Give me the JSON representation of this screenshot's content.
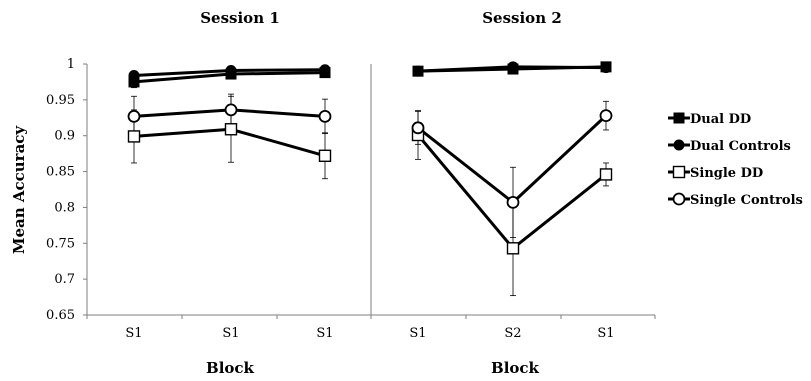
{
  "chart_data": {
    "type": "line",
    "ylabel": "Mean Accuracy",
    "ylim": [
      0.65,
      1.0
    ],
    "yticks": [
      "0.65",
      "0.7",
      "0.75",
      "0.8",
      "0.85",
      "0.9",
      "0.95",
      "1"
    ],
    "grid": false,
    "legend_placement": "right",
    "legend": [
      "Dual DD",
      "Dual Controls",
      "Single DD",
      "Single Controls"
    ],
    "panels": [
      {
        "title": "Session 1",
        "xlabel": "Block",
        "categories": [
          "S1",
          "S1",
          "S1"
        ],
        "series": [
          {
            "name": "Dual DD",
            "values": [
              0.975,
              0.986,
              0.988
            ],
            "errors": [
              0.008,
              0.006,
              0.004
            ]
          },
          {
            "name": "Dual Controls",
            "values": [
              0.984,
              0.991,
              0.992
            ],
            "errors": [
              0.004,
              0.003,
              0.003
            ]
          },
          {
            "name": "Single DD",
            "values": [
              0.899,
              0.909,
              0.872
            ],
            "errors": [
              0.037,
              0.046,
              0.032
            ]
          },
          {
            "name": "Single Controls",
            "values": [
              0.927,
              0.936,
              0.927
            ],
            "errors": [
              0.028,
              0.022,
              0.024
            ]
          }
        ]
      },
      {
        "title": "Session 2",
        "xlabel": "Block",
        "categories": [
          "S1",
          "S2",
          "S1"
        ],
        "series": [
          {
            "name": "Dual DD",
            "values": [
              0.99,
              0.993,
              0.996
            ],
            "errors": [
              0.003,
              0.003,
              0.002
            ]
          },
          {
            "name": "Dual Controls",
            "values": [
              0.99,
              0.996,
              0.995
            ],
            "errors": [
              0.002,
              0.002,
              0.002
            ]
          },
          {
            "name": "Single DD",
            "values": [
              0.901,
              0.743,
              0.846
            ],
            "errors": [
              0.034,
              0.066,
              0.016
            ]
          },
          {
            "name": "Single Controls",
            "values": [
              0.911,
              0.807,
              0.928
            ],
            "errors": [
              0.023,
              0.049,
              0.02
            ]
          }
        ]
      }
    ]
  }
}
